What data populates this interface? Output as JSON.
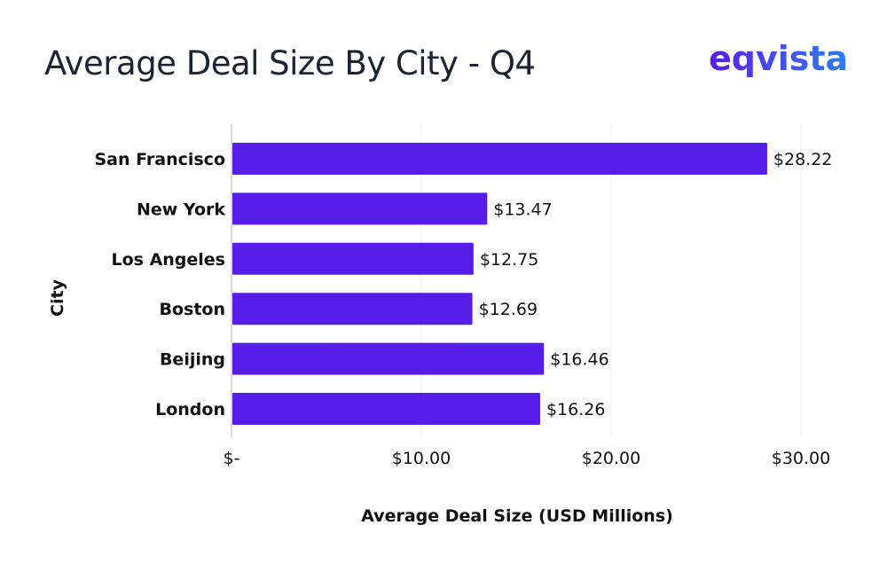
{
  "logo_text": "eqvista",
  "colors": {
    "bar": "#561ce8",
    "grid": "#eeeeee",
    "axis": "#d9d9d9"
  },
  "chart_data": {
    "type": "bar",
    "orientation": "horizontal",
    "title": "Average Deal Size By City - Q4",
    "xlabel": "Average Deal Size (USD Millions)",
    "ylabel": "City",
    "categories": [
      "San Francisco",
      "New York",
      "Los Angeles",
      "Boston",
      "Beijing",
      "London"
    ],
    "values": [
      28.22,
      13.47,
      12.75,
      12.69,
      16.46,
      16.26
    ],
    "value_labels": [
      "$28.22",
      "$13.47",
      "$12.75",
      "$12.69",
      "$16.46",
      "$16.26"
    ],
    "xlim": [
      0,
      30
    ],
    "xticks": [
      0,
      10,
      20,
      30
    ],
    "xtick_labels": [
      "$-",
      "$10.00",
      "$20.00",
      "$30.00"
    ],
    "grid": "vertical"
  }
}
